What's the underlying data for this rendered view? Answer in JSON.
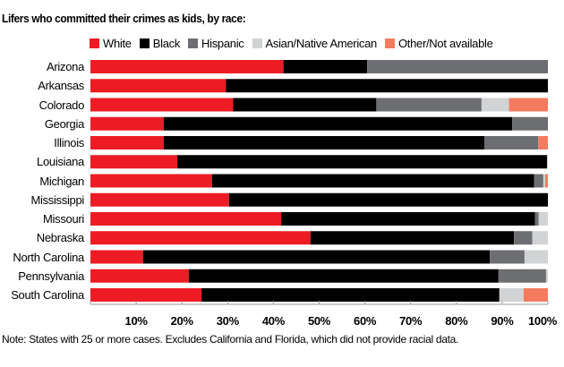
{
  "chart_data": {
    "type": "bar",
    "orientation": "horizontal",
    "stacked": true,
    "normalized": true,
    "title": "Lifers who committed their crimes as kids, by race:",
    "xlabel": "",
    "ylabel": "",
    "xlim": [
      0,
      100
    ],
    "x_ticks": [
      {
        "value": 0,
        "label": ""
      },
      {
        "value": 10,
        "label": "10%"
      },
      {
        "value": 20,
        "label": "20%"
      },
      {
        "value": 30,
        "label": "30%"
      },
      {
        "value": 40,
        "label": "40%"
      },
      {
        "value": 50,
        "label": "50%"
      },
      {
        "value": 60,
        "label": "60%"
      },
      {
        "value": 70,
        "label": "70%"
      },
      {
        "value": 80,
        "label": "80%"
      },
      {
        "value": 90,
        "label": "90%"
      },
      {
        "value": 100,
        "label": "100%"
      }
    ],
    "grid": false,
    "legend_position": "top",
    "categories": [
      "Arizona",
      "Arkansas",
      "Colorado",
      "Georgia",
      "Illinois",
      "Louisiana",
      "Michigan",
      "Mississippi",
      "Missouri",
      "Nebraska",
      "North Carolina",
      "Pennsylvania",
      "South Carolina"
    ],
    "series": [
      {
        "name": "White",
        "color": "#ED1C24",
        "values": [
          42.2,
          29.6,
          31.2,
          16.0,
          16.0,
          19.0,
          26.6,
          30.3,
          41.7,
          48.1,
          11.5,
          21.5,
          24.3
        ]
      },
      {
        "name": "Black",
        "color": "#000000",
        "values": [
          18.3,
          70.4,
          31.3,
          76.2,
          70.1,
          80.8,
          70.4,
          69.7,
          55.5,
          44.5,
          75.8,
          67.7,
          65.1
        ]
      },
      {
        "name": "Hispanic",
        "color": "#6D6E71",
        "values": [
          39.5,
          0,
          23.0,
          7.8,
          11.8,
          0,
          2.0,
          0,
          0.8,
          4.0,
          7.6,
          10.4,
          0
        ]
      },
      {
        "name": "Asian/Native American",
        "color": "#D1D3D4",
        "values": [
          0,
          0,
          6.0,
          0,
          0,
          0.2,
          0.4,
          0,
          2.0,
          3.4,
          5.1,
          0.4,
          5.3
        ]
      },
      {
        "name": "Other/Not available",
        "color": "#F47B5E",
        "values": [
          0,
          0,
          8.5,
          0,
          2.1,
          0,
          0.6,
          0,
          0,
          0,
          0,
          0,
          5.3
        ]
      }
    ],
    "annotations": [],
    "footnote": "Note: States with 25 or more cases. Excludes California and Florida, which did not provide racial data."
  }
}
